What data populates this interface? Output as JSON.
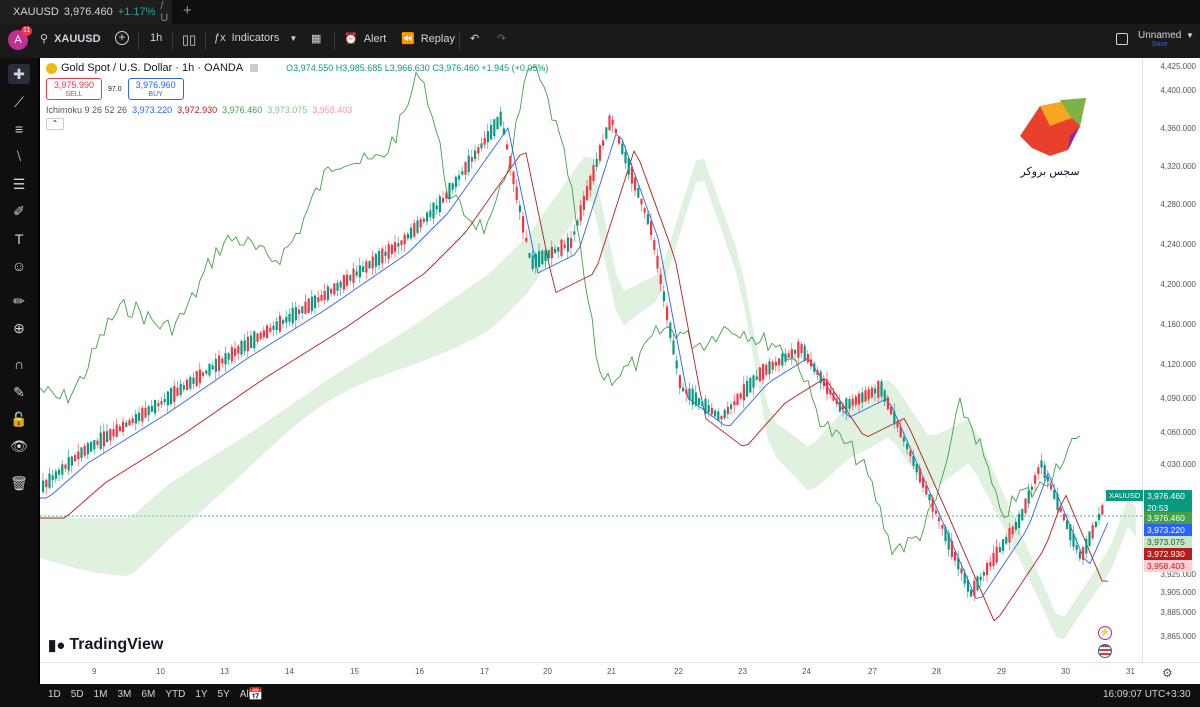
{
  "tab": {
    "symbol": "XAUUSD",
    "price": "3,976.460",
    "change": "+1.17%",
    "suffix": "/ U"
  },
  "toolbar": {
    "avatar": "A",
    "notif_count": "11",
    "symbol": "XAUUSD",
    "interval": "1h",
    "indicators": "Indicators",
    "alert": "Alert",
    "replay": "Replay",
    "layout_name": "Unnamed",
    "save": "Save"
  },
  "legend": {
    "title": "Gold Spot / U.S. Dollar · 1h · OANDA",
    "ohlc": "O3,974.550 H3,985.685 L3,966.630 C3,976.460 +1.945 (+0.05%)",
    "sell_price": "3,975.990",
    "sell_label": "SELL",
    "spread": "97.0",
    "buy_price": "3,976.960",
    "buy_label": "BUY",
    "ichimoku_label": "Ichimoku 9 26 52 26",
    "ichimoku_values": [
      "3,973.220",
      "3,972.930",
      "3,976.460",
      "3,973.075",
      "3,958.403"
    ]
  },
  "watermark": {
    "brand": "TradingView",
    "logo_text": "سجس بروکر"
  },
  "price_axis": [
    "4,425.000",
    "4,400.000",
    "4,360.000",
    "4,320.000",
    "4,280.000",
    "4,240.000",
    "4,200.000",
    "4,160.000",
    "4,120.000",
    "4,090.000",
    "4,060.000",
    "4,030.000",
    "3,925.000",
    "3,905.000",
    "3,885.000",
    "3,865.000"
  ],
  "price_tags": {
    "symbol": "XAUUSD",
    "last": "3,976.460",
    "countdown": "20:53",
    "chikou": "3,976.460",
    "tenkan": "3,973.220",
    "span_a": "3,973.075",
    "kijun": "3,972.930",
    "span_b": "3,958.403"
  },
  "time_axis": [
    "9",
    "10",
    "13",
    "14",
    "15",
    "16",
    "17",
    "20",
    "21",
    "22",
    "23",
    "24",
    "27",
    "28",
    "29",
    "30",
    "31"
  ],
  "bottom": {
    "ranges": [
      "1D",
      "5D",
      "1M",
      "3M",
      "6M",
      "YTD",
      "1Y",
      "5Y",
      "All"
    ],
    "clock": "16:09:07 UTC+3:30"
  },
  "colors": {
    "up": "#089981",
    "down": "#f23645",
    "tenkan": "#2962ff",
    "kijun": "#b71c1c",
    "chikou": "#43a047",
    "cloud_bull": "#a5d6a7",
    "cloud_bear": "#ef9a9a"
  }
}
